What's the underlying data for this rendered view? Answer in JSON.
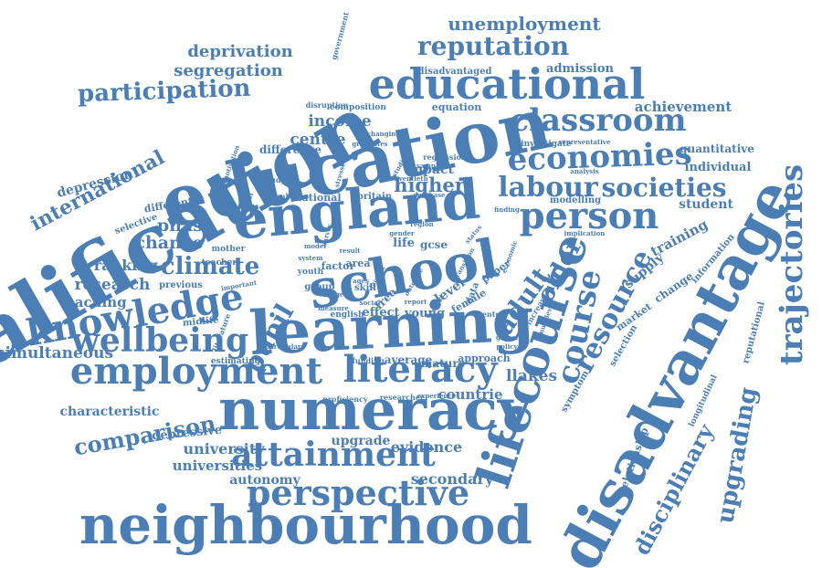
{
  "color": "#4a7eb5",
  "words": [
    "qualification",
    "education",
    "england",
    "school",
    "learning",
    "numeracy",
    "disadvantage",
    "lifecourse",
    "neighbourhood",
    "employment",
    "literacy",
    "educational",
    "economies",
    "person",
    "classroom",
    "trajectories",
    "knowledge",
    "wellbeing",
    "attainment",
    "perspective",
    "labour",
    "societies",
    "course",
    "resource",
    "pupil",
    "climate",
    "adult",
    "older",
    "upgrading",
    "disciplinary",
    "comparison",
    "participation",
    "reputation",
    "unemployment",
    "international",
    "deprivation",
    "segregation",
    "centre",
    "income",
    "higher",
    "chance",
    "phase",
    "ranking",
    "research",
    "teaching",
    "simultaneous",
    "characteristic",
    "university",
    "universities",
    "autonomy",
    "evidence",
    "upgrade",
    "secondary",
    "countrie",
    "llakes",
    "achievement",
    "quantitative",
    "individual",
    "student",
    "training",
    "supply",
    "market",
    "change",
    "selection",
    "relationship",
    "longitudinal",
    "reputational",
    "information",
    "symptom",
    "depressive",
    "depression",
    "midlife",
    "different",
    "selective",
    "previous",
    "mother",
    "teacher",
    "estimating",
    "particular",
    "proficiency",
    "researcher",
    "experience",
    "mature",
    "approach",
    "average",
    "funding",
    "english",
    "effect",
    "young",
    "female",
    "paper",
    "level",
    "free",
    "data",
    "century",
    "skill",
    "gcse",
    "life",
    "factor",
    "area",
    "group",
    "youth",
    "system",
    "britain",
    "national",
    "number",
    "impact",
    "regression",
    "sample",
    "twentieth",
    "database",
    "finding",
    "modelling",
    "analysis",
    "investigate",
    "representative",
    "admission",
    "disadvantaged",
    "equation",
    "composition",
    "disruption",
    "government",
    "difference",
    "changing",
    "survey",
    "empirical",
    "motivation",
    "stressed",
    "result",
    "studies",
    "study",
    "implication",
    "multilevel",
    "increase",
    "model",
    "range",
    "report",
    "social",
    "outcome",
    "policy",
    "global",
    "cohort",
    "literature",
    "important",
    "transition",
    "factors",
    "ages",
    "status",
    "economic",
    "measure",
    "gender",
    "region",
    "graduates"
  ]
}
